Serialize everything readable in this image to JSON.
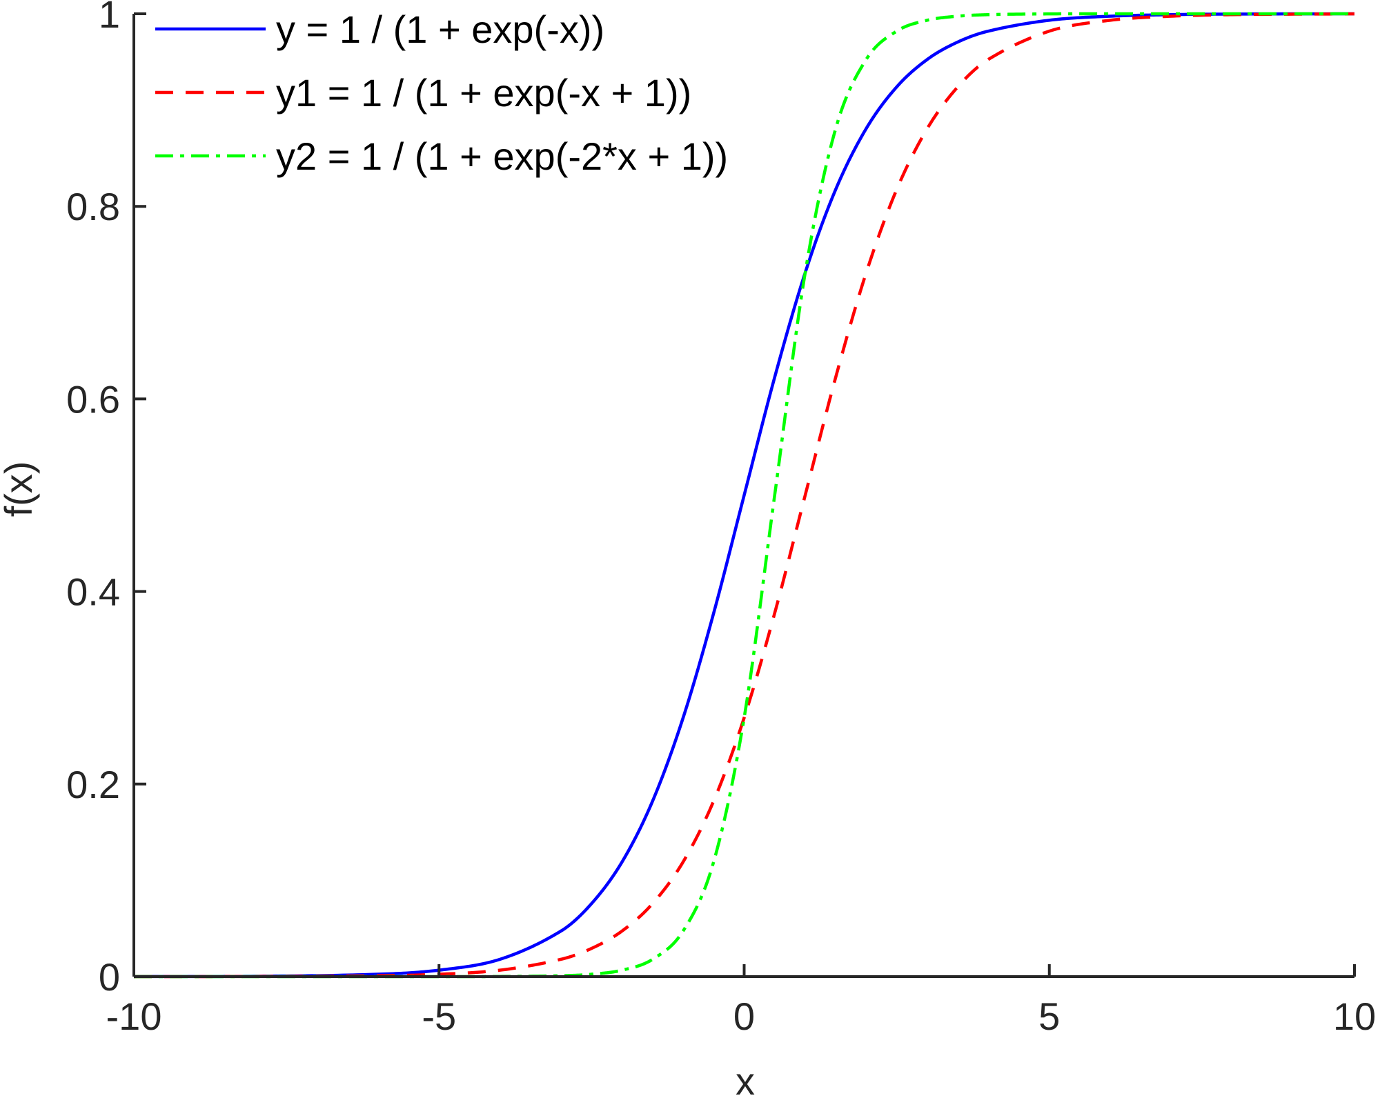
{
  "chart_data": {
    "type": "line",
    "xlabel": "x",
    "ylabel": "f(x)",
    "xlim": [
      -10,
      10
    ],
    "ylim": [
      0,
      1
    ],
    "xticks": [
      -10,
      -5,
      0,
      5,
      10
    ],
    "xtick_labels": [
      "-10",
      "-5",
      "0",
      "5",
      "10"
    ],
    "yticks": [
      0,
      0.2,
      0.4,
      0.6,
      0.8,
      1
    ],
    "ytick_labels": [
      "0",
      "0.2",
      "0.4",
      "0.6",
      "0.8",
      "1"
    ],
    "grid": false,
    "legend_position": "top-left",
    "x": [
      -10,
      -8,
      -6,
      -5,
      -4,
      -3,
      -2.5,
      -2,
      -1.5,
      -1,
      -0.5,
      0,
      0.5,
      1,
      1.5,
      2,
      2.5,
      3,
      3.5,
      4,
      5,
      6,
      7,
      8,
      10
    ],
    "series": [
      {
        "name": "y = 1 / (1 + exp(-x))",
        "color": "#0000FF",
        "style": "solid",
        "values": [
          4.54e-05,
          0.000335,
          0.00247,
          0.00669,
          0.018,
          0.0474,
          0.0759,
          0.1192,
          0.1824,
          0.2689,
          0.3775,
          0.5,
          0.6225,
          0.7311,
          0.8176,
          0.8808,
          0.9241,
          0.9526,
          0.9707,
          0.982,
          0.9933,
          0.9975,
          0.9991,
          0.9997,
          1.0
        ]
      },
      {
        "name": "y1 = 1 / (1 + exp(-x + 1))",
        "color": "#FF0000",
        "style": "dashed",
        "values": [
          1.67e-05,
          0.000123,
          0.000911,
          0.00247,
          0.00669,
          0.018,
          0.0293,
          0.0474,
          0.0759,
          0.1192,
          0.1824,
          0.2689,
          0.3775,
          0.5,
          0.6225,
          0.7311,
          0.8176,
          0.8808,
          0.9241,
          0.9526,
          0.982,
          0.9933,
          0.9975,
          0.9991,
          0.9999
        ]
      },
      {
        "name": "y2 = 1 / (1 + exp(-2*x + 1))",
        "color": "#00FF00",
        "style": "dashdot",
        "values": [
          0.0,
          0.0,
          2.3e-06,
          1.67e-05,
          0.000123,
          0.000911,
          0.00247,
          0.00669,
          0.018,
          0.0474,
          0.1192,
          0.2689,
          0.5,
          0.7311,
          0.8808,
          0.9526,
          0.982,
          0.9933,
          0.9975,
          0.9991,
          0.9999,
          1.0,
          1.0,
          1.0,
          1.0
        ]
      }
    ]
  }
}
